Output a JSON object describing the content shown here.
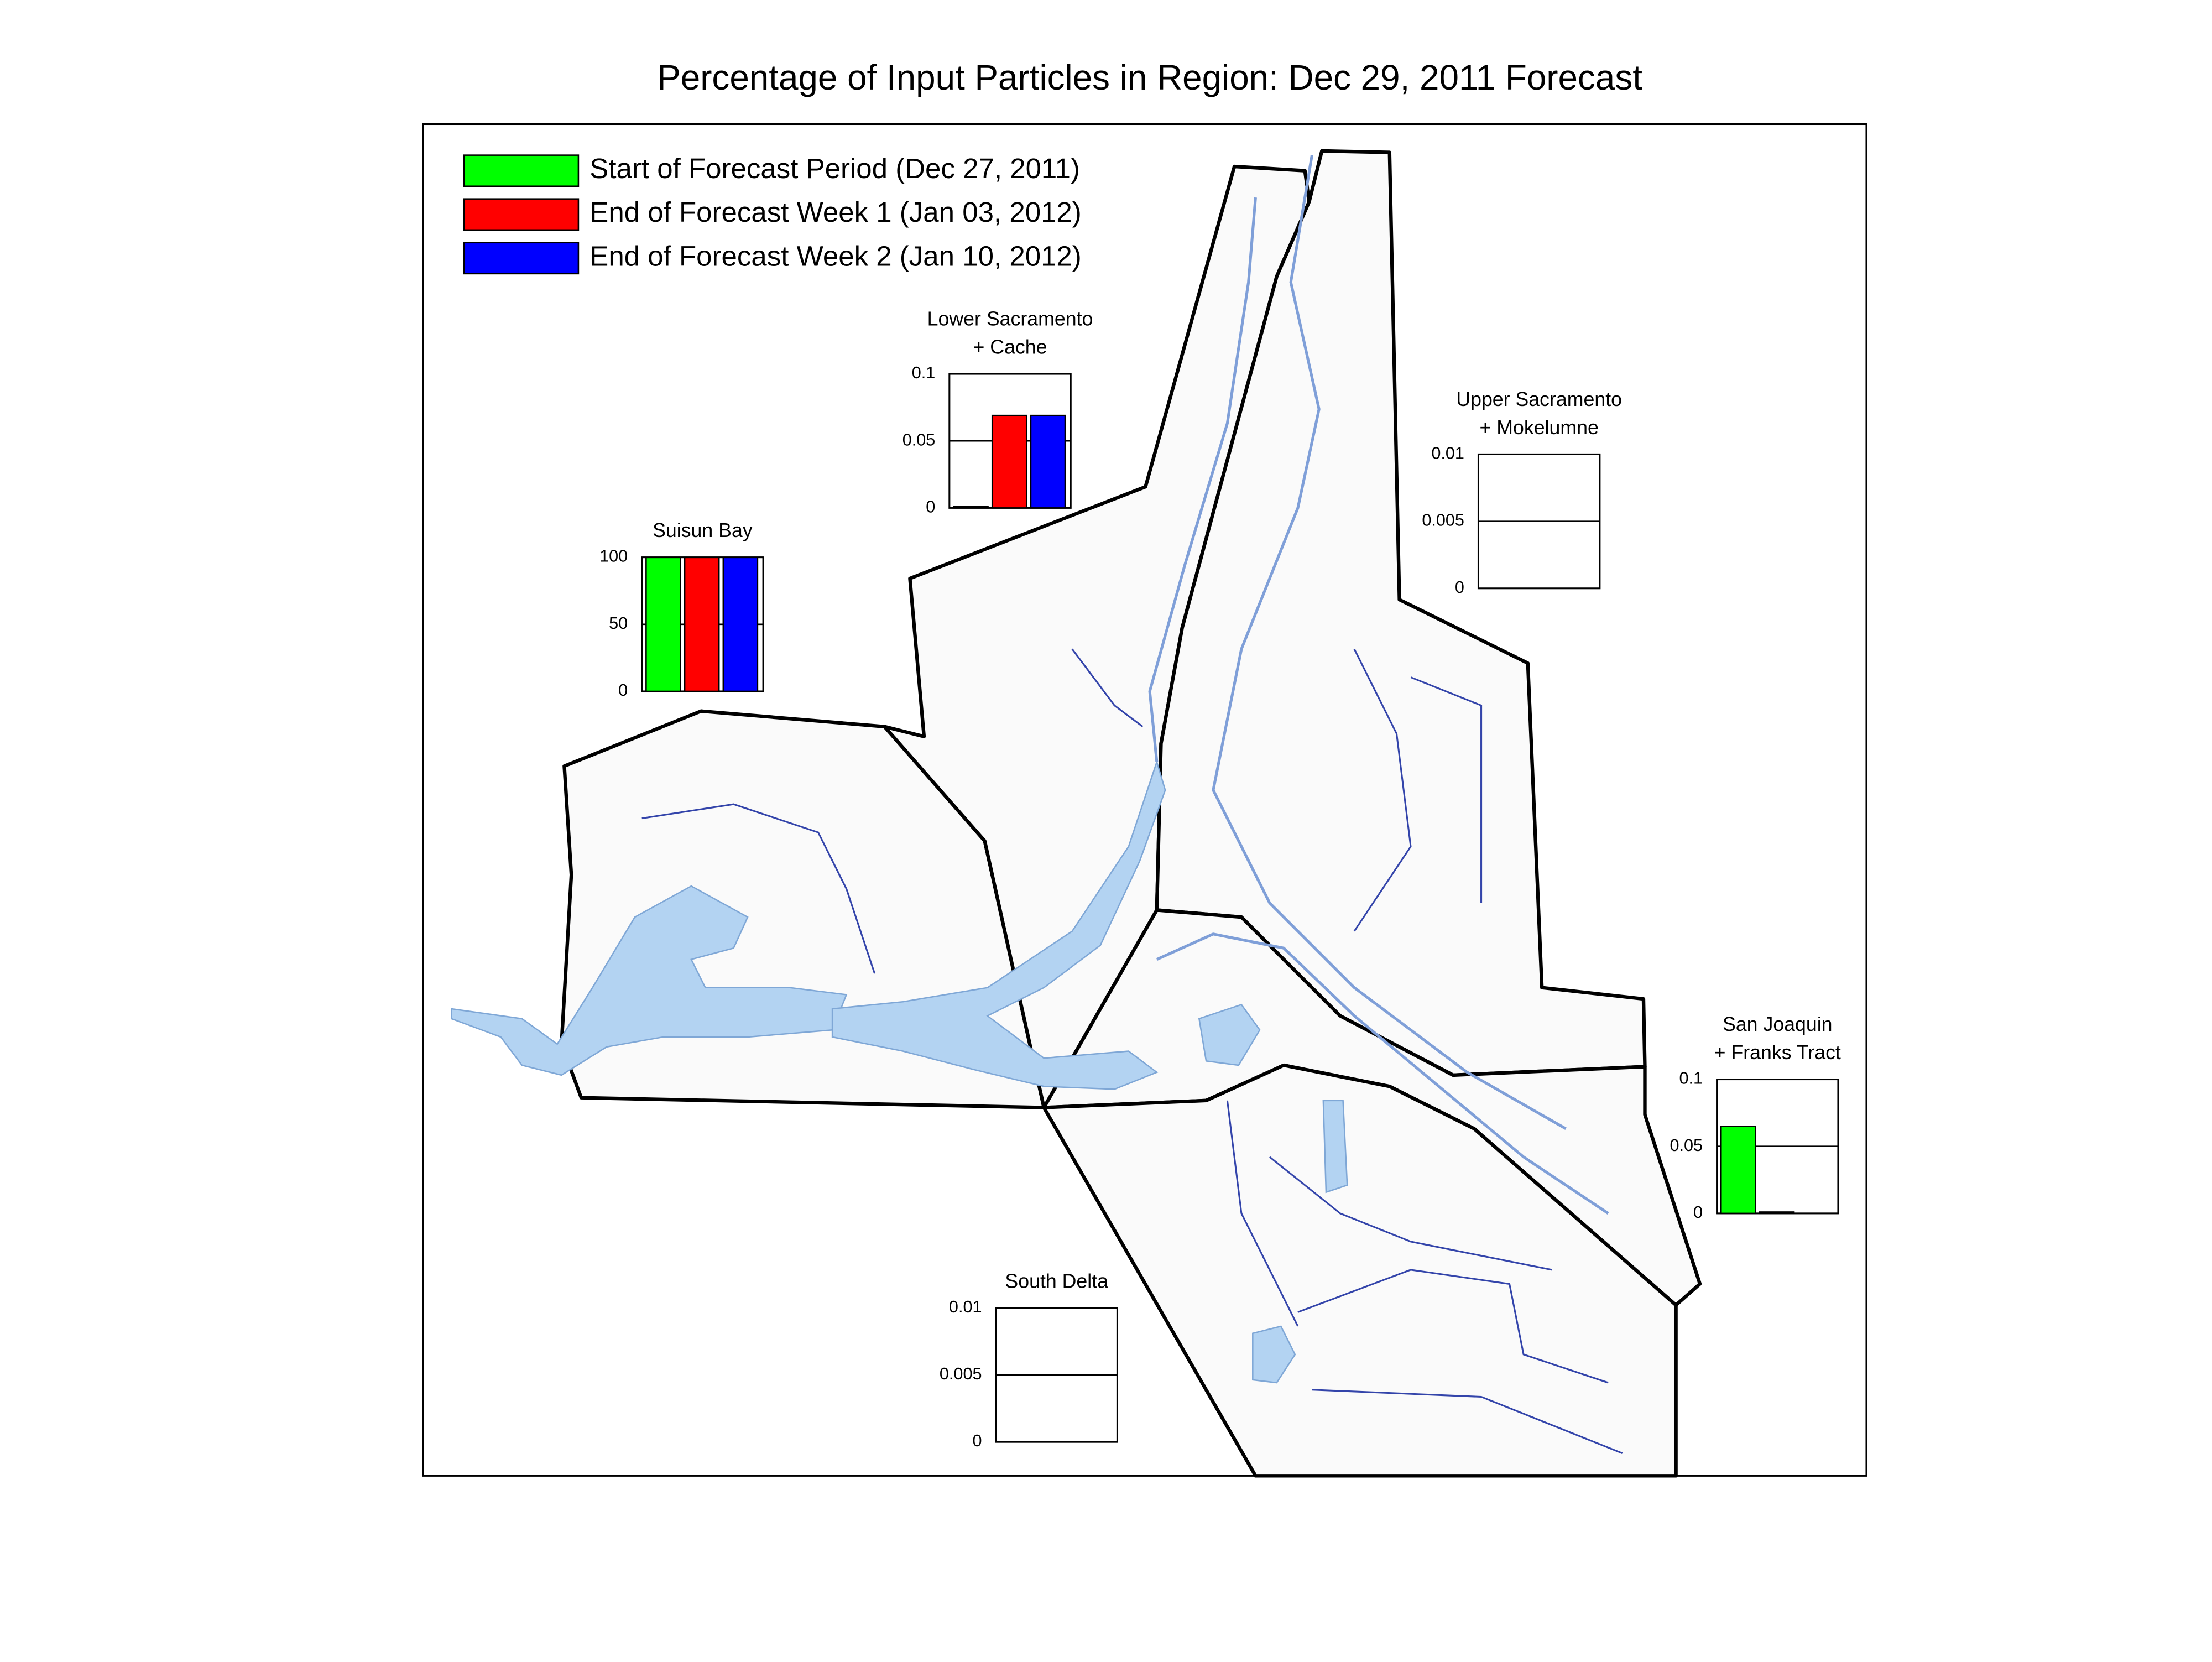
{
  "title": "Percentage of Input Particles in Region: Dec 29, 2011 Forecast",
  "legend": [
    {
      "name": "Start of Forecast Period (Dec 27, 2011)",
      "color": "#00ff00"
    },
    {
      "name": "End of Forecast Week 1 (Jan 03, 2012)",
      "color": "#ff0000"
    },
    {
      "name": "End of Forecast Week 2 (Jan 10, 2012)",
      "color": "#0000ff"
    }
  ],
  "chart_data": [
    {
      "type": "bar",
      "title": [
        "Lower Sacramento",
        "+ Cache"
      ],
      "values": [
        0.001,
        0.069,
        0.069
      ],
      "ylim": [
        0,
        0.1
      ],
      "yticks": [
        0,
        0.05,
        0.1
      ]
    },
    {
      "type": "bar",
      "title": [
        "Suisun Bay"
      ],
      "values": [
        99.9,
        99.9,
        99.9
      ],
      "ylim": [
        0,
        100
      ],
      "yticks": [
        0,
        50,
        100
      ]
    },
    {
      "type": "bar",
      "title": [
        "Upper Sacramento",
        "+ Mokelumne"
      ],
      "values": [
        0,
        0,
        0
      ],
      "ylim": [
        0,
        0.01
      ],
      "yticks": [
        0,
        0.005,
        0.01
      ]
    },
    {
      "type": "bar",
      "title": [
        "San Joaquin",
        "+ Franks Tract"
      ],
      "values": [
        0.065,
        0.001,
        0
      ],
      "ylim": [
        0,
        0.1
      ],
      "yticks": [
        0,
        0.05,
        0.1
      ]
    },
    {
      "type": "bar",
      "title": [
        "South Delta"
      ],
      "values": [
        0,
        0,
        0
      ],
      "ylim": [
        0,
        0.01
      ],
      "yticks": [
        0,
        0.005,
        0.01
      ]
    }
  ]
}
